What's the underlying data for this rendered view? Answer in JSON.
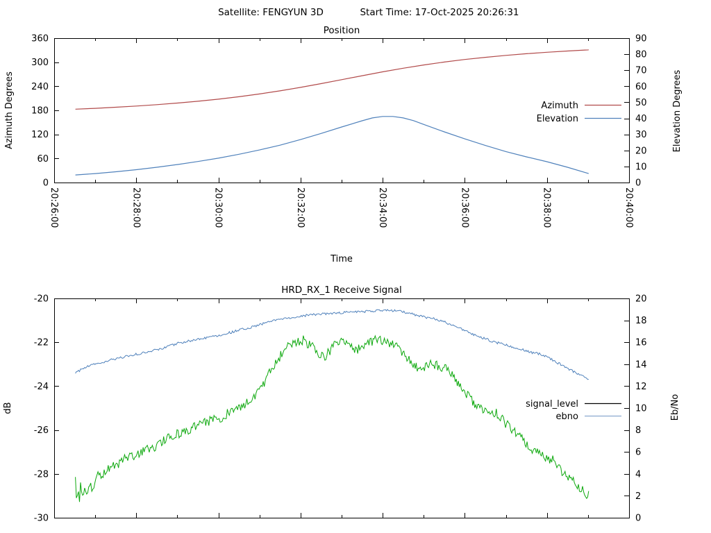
{
  "header": {
    "satellite": "Satellite: FENGYUN 3D",
    "start_time": "Start Time: 17-Oct-2025 20:26:31"
  },
  "colors": {
    "background": "#ffffff",
    "plot_border": "#000000",
    "text": "#000000",
    "azimuth": "#b14a4a",
    "elevation": "#4f81bb",
    "signal_level": "#0ca80c",
    "ebno": "#4f81bb"
  },
  "chart_data": [
    {
      "type": "line",
      "title": "Position",
      "xlabel": "Time",
      "ylabel": "Azimuth Degrees",
      "y2label": "Elevation Degrees",
      "grid": false,
      "legend_position": "right-inside",
      "x_range_seconds": [
        0,
        840
      ],
      "x_major_tick_seconds": 120,
      "x_minor_tick_seconds": 60,
      "x_tick_labels": [
        "20:26:00",
        "20:28:00",
        "20:30:00",
        "20:32:00",
        "20:34:00",
        "20:36:00",
        "20:38:00",
        "20:40:00"
      ],
      "ylim": [
        0,
        360
      ],
      "y_ticks": [
        0,
        60,
        120,
        180,
        240,
        300,
        360
      ],
      "y2lim": [
        0,
        90
      ],
      "y2_ticks": [
        0,
        10,
        20,
        30,
        40,
        50,
        60,
        70,
        80,
        90
      ],
      "legend": [
        {
          "label": "Azimuth",
          "color": "#b14a4a"
        },
        {
          "label": "Elevation",
          "color": "#4f81bb"
        }
      ],
      "series": [
        {
          "name": "Azimuth",
          "axis": "y",
          "color": "#b14a4a",
          "noise": 0,
          "points": [
            [
              31,
              183.0
            ],
            [
              60,
              185.1
            ],
            [
              90,
              187.8
            ],
            [
              120,
              190.8
            ],
            [
              150,
              194.2
            ],
            [
              180,
              198.2
            ],
            [
              210,
              202.7
            ],
            [
              240,
              207.9
            ],
            [
              270,
              213.9
            ],
            [
              300,
              220.8
            ],
            [
              330,
              228.6
            ],
            [
              360,
              237.3
            ],
            [
              390,
              246.7
            ],
            [
              420,
              256.5
            ],
            [
              450,
              266.4
            ],
            [
              480,
              276.0
            ],
            [
              510,
              285.0
            ],
            [
              540,
              293.2
            ],
            [
              570,
              300.4
            ],
            [
              600,
              306.8
            ],
            [
              630,
              312.3
            ],
            [
              660,
              317.1
            ],
            [
              690,
              321.2
            ],
            [
              720,
              324.9
            ],
            [
              750,
              328.0
            ],
            [
              780,
              330.8
            ],
            [
              781,
              330.9
            ]
          ]
        },
        {
          "name": "Elevation",
          "axis": "y2",
          "color": "#4f81bb",
          "noise": 0,
          "points": [
            [
              31,
              4.7
            ],
            [
              60,
              5.6
            ],
            [
              90,
              6.7
            ],
            [
              120,
              8.0
            ],
            [
              150,
              9.5
            ],
            [
              180,
              11.2
            ],
            [
              210,
              13.1
            ],
            [
              240,
              15.2
            ],
            [
              270,
              17.6
            ],
            [
              300,
              20.3
            ],
            [
              330,
              23.3
            ],
            [
              360,
              26.8
            ],
            [
              390,
              30.6
            ],
            [
              420,
              34.6
            ],
            [
              450,
              38.5
            ],
            [
              465,
              40.3
            ],
            [
              480,
              41.2
            ],
            [
              495,
              41.2
            ],
            [
              510,
              40.3
            ],
            [
              525,
              38.6
            ],
            [
              540,
              36.2
            ],
            [
              570,
              31.6
            ],
            [
              600,
              27.2
            ],
            [
              630,
              23.1
            ],
            [
              660,
              19.3
            ],
            [
              690,
              16.0
            ],
            [
              720,
              13.0
            ],
            [
              750,
              9.5
            ],
            [
              780,
              5.7
            ],
            [
              781,
              5.6
            ]
          ]
        }
      ]
    },
    {
      "type": "line",
      "title": "HRD_RX_1 Receive Signal",
      "xlabel": "",
      "ylabel": "dB",
      "y2label": "Eb/No",
      "grid": false,
      "legend_position": "right-inside",
      "x_range_seconds": [
        0,
        840
      ],
      "x_major_tick_seconds": 120,
      "x_minor_tick_seconds": 60,
      "x_tick_labels": [],
      "ylim": [
        -30,
        -20
      ],
      "y_ticks": [
        -30,
        -28,
        -26,
        -24,
        -22,
        -20
      ],
      "y2lim": [
        0,
        20
      ],
      "y2_ticks": [
        0,
        2,
        4,
        6,
        8,
        10,
        12,
        14,
        16,
        18,
        20
      ],
      "legend": [
        {
          "label": "signal_level",
          "color": "#000000"
        },
        {
          "label": "ebno",
          "color": "#8aa8cf"
        }
      ],
      "series": [
        {
          "name": "signal_level",
          "axis": "y",
          "color": "#0ca80c",
          "noise": 0.22,
          "seed": 3,
          "points": [
            [
              31,
              -28.3
            ],
            [
              33,
              -29.3
            ],
            [
              35,
              -28.5
            ],
            [
              37,
              -29.1
            ],
            [
              39,
              -28.4
            ],
            [
              41,
              -29.2
            ],
            [
              44,
              -28.6
            ],
            [
              48,
              -28.9
            ],
            [
              52,
              -28.4
            ],
            [
              56,
              -28.7
            ],
            [
              60,
              -28.2
            ],
            [
              75,
              -27.9
            ],
            [
              90,
              -27.6
            ],
            [
              105,
              -27.3
            ],
            [
              120,
              -27.1
            ],
            [
              135,
              -26.9
            ],
            [
              150,
              -26.7
            ],
            [
              165,
              -26.4
            ],
            [
              180,
              -26.2
            ],
            [
              195,
              -26.0
            ],
            [
              210,
              -25.8
            ],
            [
              225,
              -25.6
            ],
            [
              240,
              -25.5
            ],
            [
              255,
              -25.2
            ],
            [
              270,
              -25.0
            ],
            [
              285,
              -24.7
            ],
            [
              295,
              -24.4
            ],
            [
              305,
              -24.0
            ],
            [
              315,
              -23.4
            ],
            [
              325,
              -22.9
            ],
            [
              335,
              -22.4
            ],
            [
              350,
              -22.0
            ],
            [
              365,
              -21.9
            ],
            [
              380,
              -22.3
            ],
            [
              395,
              -22.7
            ],
            [
              410,
              -22.1
            ],
            [
              425,
              -21.9
            ],
            [
              440,
              -22.4
            ],
            [
              455,
              -22.1
            ],
            [
              470,
              -21.9
            ],
            [
              485,
              -22.0
            ],
            [
              500,
              -22.2
            ],
            [
              512,
              -22.5
            ],
            [
              525,
              -23.1
            ],
            [
              540,
              -23.2
            ],
            [
              552,
              -23.0
            ],
            [
              565,
              -23.1
            ],
            [
              580,
              -23.4
            ],
            [
              590,
              -23.9
            ],
            [
              602,
              -24.3
            ],
            [
              615,
              -24.9
            ],
            [
              630,
              -25.1
            ],
            [
              645,
              -25.2
            ],
            [
              660,
              -25.7
            ],
            [
              680,
              -26.3
            ],
            [
              700,
              -26.9
            ],
            [
              715,
              -27.2
            ],
            [
              730,
              -27.4
            ],
            [
              745,
              -28.0
            ],
            [
              760,
              -28.4
            ],
            [
              775,
              -28.8
            ],
            [
              781,
              -29.0
            ]
          ]
        },
        {
          "name": "ebno",
          "axis": "y2",
          "color": "#4f81bb",
          "noise": 0.11,
          "seed": 9,
          "points": [
            [
              31,
              13.2
            ],
            [
              45,
              13.7
            ],
            [
              60,
              14.0
            ],
            [
              90,
              14.5
            ],
            [
              120,
              14.9
            ],
            [
              150,
              15.3
            ],
            [
              180,
              15.9
            ],
            [
              210,
              16.3
            ],
            [
              240,
              16.6
            ],
            [
              270,
              17.1
            ],
            [
              290,
              17.4
            ],
            [
              310,
              17.8
            ],
            [
              330,
              18.1
            ],
            [
              360,
              18.4
            ],
            [
              390,
              18.6
            ],
            [
              420,
              18.7
            ],
            [
              450,
              18.8
            ],
            [
              480,
              18.9
            ],
            [
              500,
              18.9
            ],
            [
              515,
              18.7
            ],
            [
              535,
              18.4
            ],
            [
              550,
              18.2
            ],
            [
              565,
              18.0
            ],
            [
              580,
              17.6
            ],
            [
              595,
              17.2
            ],
            [
              612,
              16.7
            ],
            [
              630,
              16.3
            ],
            [
              645,
              16.0
            ],
            [
              662,
              15.7
            ],
            [
              680,
              15.4
            ],
            [
              695,
              15.1
            ],
            [
              712,
              14.9
            ],
            [
              728,
              14.4
            ],
            [
              745,
              13.8
            ],
            [
              760,
              13.3
            ],
            [
              775,
              12.8
            ],
            [
              781,
              12.7
            ]
          ]
        }
      ]
    }
  ]
}
